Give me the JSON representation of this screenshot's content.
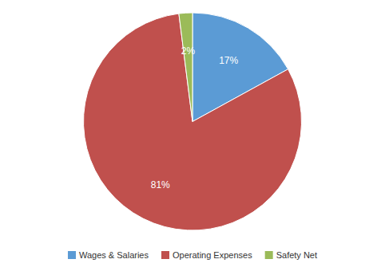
{
  "chart_data": {
    "type": "pie",
    "categories": [
      "Wages & Salaries",
      "Operating Expenses",
      "Safety Net"
    ],
    "values": [
      17,
      81,
      2
    ],
    "value_labels": [
      "17%",
      "81%",
      "2%"
    ],
    "colors": [
      "#5b9bd5",
      "#c0504d",
      "#9bbb59"
    ],
    "data_labels": true,
    "legend": "bottom"
  }
}
